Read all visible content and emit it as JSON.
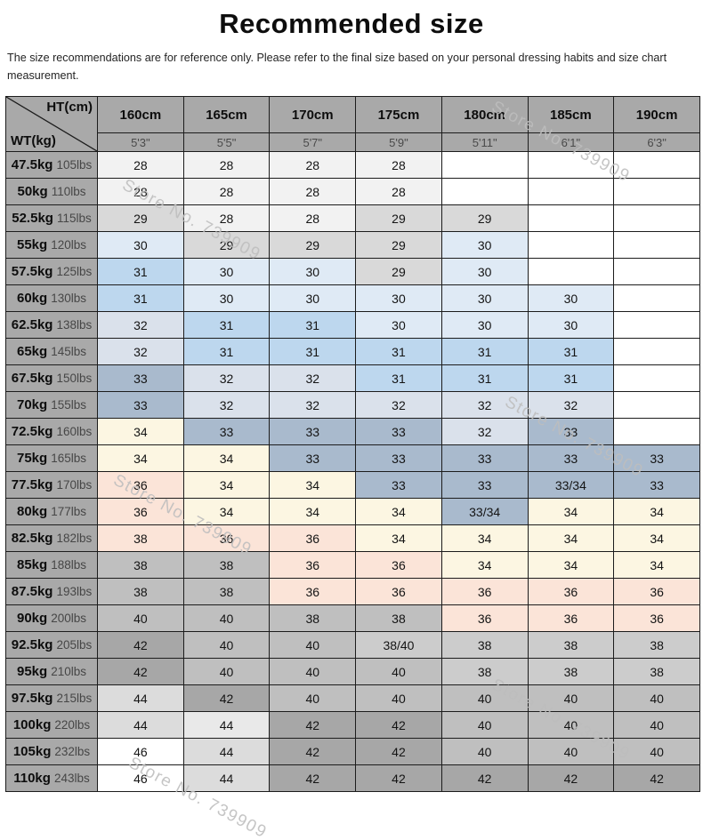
{
  "title": "Recommended size",
  "subtitle": "The size recommendations are for reference only. Please refer to the final size based on your personal dressing habits and size chart measurement.",
  "watermark_text": "Store No. 739909",
  "colors": {
    "header_bg": "#a9a9a9",
    "border": "#1c1c1c",
    "palette": {
      "w": "#ffffff",
      "p28": "#f2f2f2",
      "p29": "#d9d9d9",
      "p30": "#dfeaf5",
      "p31": "#bdd7ee",
      "p32": "#dae1eb",
      "p33": "#a9bacd",
      "p34": "#fcf6e2",
      "p36": "#fbe4d8",
      "p38": "#bfbfbf",
      "p38l": "#cccccc",
      "p42": "#a7a7a7",
      "p44": "#dcdcdc",
      "p44l": "#e9e9e9"
    }
  },
  "table": {
    "corner": {
      "top": "HT(cm)",
      "bottom": "WT(kg)"
    },
    "height_cm": [
      "160cm",
      "165cm",
      "170cm",
      "175cm",
      "180cm",
      "185cm",
      "190cm"
    ],
    "height_ft": [
      "5'3\"",
      "5'5\"",
      "5'7\"",
      "5'9\"",
      "5'11\"",
      "6'1\"",
      "6'3\""
    ],
    "rows": [
      {
        "kg": "47.5kg",
        "lbs": "105lbs",
        "cells": [
          [
            "28",
            "p28"
          ],
          [
            "28",
            "p28"
          ],
          [
            "28",
            "p28"
          ],
          [
            "28",
            "p28"
          ],
          [
            "",
            "w"
          ],
          [
            "",
            "w"
          ],
          [
            "",
            "w"
          ]
        ]
      },
      {
        "kg": "50kg",
        "lbs": "110lbs",
        "cells": [
          [
            "28",
            "p28"
          ],
          [
            "28",
            "p28"
          ],
          [
            "28",
            "p28"
          ],
          [
            "28",
            "p28"
          ],
          [
            "",
            "w"
          ],
          [
            "",
            "w"
          ],
          [
            "",
            "w"
          ]
        ]
      },
      {
        "kg": "52.5kg",
        "lbs": "115lbs",
        "cells": [
          [
            "29",
            "p29"
          ],
          [
            "28",
            "p28"
          ],
          [
            "28",
            "p28"
          ],
          [
            "29",
            "p29"
          ],
          [
            "29",
            "p29"
          ],
          [
            "",
            "w"
          ],
          [
            "",
            "w"
          ]
        ]
      },
      {
        "kg": "55kg",
        "lbs": "120lbs",
        "cells": [
          [
            "30",
            "p30"
          ],
          [
            "29",
            "p29"
          ],
          [
            "29",
            "p29"
          ],
          [
            "29",
            "p29"
          ],
          [
            "30",
            "p30"
          ],
          [
            "",
            "w"
          ],
          [
            "",
            "w"
          ]
        ]
      },
      {
        "kg": "57.5kg",
        "lbs": "125lbs",
        "cells": [
          [
            "31",
            "p31"
          ],
          [
            "30",
            "p30"
          ],
          [
            "30",
            "p30"
          ],
          [
            "29",
            "p29"
          ],
          [
            "30",
            "p30"
          ],
          [
            "",
            "w"
          ],
          [
            "",
            "w"
          ]
        ]
      },
      {
        "kg": "60kg",
        "lbs": "130lbs",
        "cells": [
          [
            "31",
            "p31"
          ],
          [
            "30",
            "p30"
          ],
          [
            "30",
            "p30"
          ],
          [
            "30",
            "p30"
          ],
          [
            "30",
            "p30"
          ],
          [
            "30",
            "p30"
          ],
          [
            "",
            "w"
          ]
        ]
      },
      {
        "kg": "62.5kg",
        "lbs": "138lbs",
        "cells": [
          [
            "32",
            "p32"
          ],
          [
            "31",
            "p31"
          ],
          [
            "31",
            "p31"
          ],
          [
            "30",
            "p30"
          ],
          [
            "30",
            "p30"
          ],
          [
            "30",
            "p30"
          ],
          [
            "",
            "w"
          ]
        ]
      },
      {
        "kg": "65kg",
        "lbs": "145lbs",
        "cells": [
          [
            "32",
            "p32"
          ],
          [
            "31",
            "p31"
          ],
          [
            "31",
            "p31"
          ],
          [
            "31",
            "p31"
          ],
          [
            "31",
            "p31"
          ],
          [
            "31",
            "p31"
          ],
          [
            "",
            "w"
          ]
        ]
      },
      {
        "kg": "67.5kg",
        "lbs": "150lbs",
        "cells": [
          [
            "33",
            "p33"
          ],
          [
            "32",
            "p32"
          ],
          [
            "32",
            "p32"
          ],
          [
            "31",
            "p31"
          ],
          [
            "31",
            "p31"
          ],
          [
            "31",
            "p31"
          ],
          [
            "",
            "w"
          ]
        ]
      },
      {
        "kg": "70kg",
        "lbs": "155lbs",
        "cells": [
          [
            "33",
            "p33"
          ],
          [
            "32",
            "p32"
          ],
          [
            "32",
            "p32"
          ],
          [
            "32",
            "p32"
          ],
          [
            "32",
            "p32"
          ],
          [
            "32",
            "p32"
          ],
          [
            "",
            "w"
          ]
        ]
      },
      {
        "kg": "72.5kg",
        "lbs": "160lbs",
        "cells": [
          [
            "34",
            "p34"
          ],
          [
            "33",
            "p33"
          ],
          [
            "33",
            "p33"
          ],
          [
            "33",
            "p33"
          ],
          [
            "32",
            "p32"
          ],
          [
            "33",
            "p33"
          ],
          [
            "",
            "w"
          ]
        ]
      },
      {
        "kg": "75kg",
        "lbs": "165lbs",
        "cells": [
          [
            "34",
            "p34"
          ],
          [
            "34",
            "p34"
          ],
          [
            "33",
            "p33"
          ],
          [
            "33",
            "p33"
          ],
          [
            "33",
            "p33"
          ],
          [
            "33",
            "p33"
          ],
          [
            "33",
            "p33"
          ]
        ]
      },
      {
        "kg": "77.5kg",
        "lbs": "170lbs",
        "cells": [
          [
            "36",
            "p36"
          ],
          [
            "34",
            "p34"
          ],
          [
            "34",
            "p34"
          ],
          [
            "33",
            "p33"
          ],
          [
            "33",
            "p33"
          ],
          [
            "33/34",
            "p33"
          ],
          [
            "33",
            "p33"
          ]
        ]
      },
      {
        "kg": "80kg",
        "lbs": "177lbs",
        "cells": [
          [
            "36",
            "p36"
          ],
          [
            "34",
            "p34"
          ],
          [
            "34",
            "p34"
          ],
          [
            "34",
            "p34"
          ],
          [
            "33/34",
            "p33"
          ],
          [
            "34",
            "p34"
          ],
          [
            "34",
            "p34"
          ]
        ]
      },
      {
        "kg": "82.5kg",
        "lbs": "182lbs",
        "cells": [
          [
            "38",
            "p36"
          ],
          [
            "36",
            "p36"
          ],
          [
            "36",
            "p36"
          ],
          [
            "34",
            "p34"
          ],
          [
            "34",
            "p34"
          ],
          [
            "34",
            "p34"
          ],
          [
            "34",
            "p34"
          ]
        ]
      },
      {
        "kg": "85kg",
        "lbs": "188lbs",
        "cells": [
          [
            "38",
            "p38"
          ],
          [
            "38",
            "p38"
          ],
          [
            "36",
            "p36"
          ],
          [
            "36",
            "p36"
          ],
          [
            "34",
            "p34"
          ],
          [
            "34",
            "p34"
          ],
          [
            "34",
            "p34"
          ]
        ]
      },
      {
        "kg": "87.5kg",
        "lbs": "193lbs",
        "cells": [
          [
            "38",
            "p38"
          ],
          [
            "38",
            "p38"
          ],
          [
            "36",
            "p36"
          ],
          [
            "36",
            "p36"
          ],
          [
            "36",
            "p36"
          ],
          [
            "36",
            "p36"
          ],
          [
            "36",
            "p36"
          ]
        ]
      },
      {
        "kg": "90kg",
        "lbs": "200lbs",
        "cells": [
          [
            "40",
            "p38"
          ],
          [
            "40",
            "p38"
          ],
          [
            "38",
            "p38"
          ],
          [
            "38",
            "p38"
          ],
          [
            "36",
            "p36"
          ],
          [
            "36",
            "p36"
          ],
          [
            "36",
            "p36"
          ]
        ]
      },
      {
        "kg": "92.5kg",
        "lbs": "205lbs",
        "cells": [
          [
            "42",
            "p42"
          ],
          [
            "40",
            "p38"
          ],
          [
            "40",
            "p38"
          ],
          [
            "38/40",
            "p38l"
          ],
          [
            "38",
            "p38l"
          ],
          [
            "38",
            "p38l"
          ],
          [
            "38",
            "p38l"
          ]
        ]
      },
      {
        "kg": "95kg",
        "lbs": "210lbs",
        "cells": [
          [
            "42",
            "p42"
          ],
          [
            "40",
            "p38"
          ],
          [
            "40",
            "p38"
          ],
          [
            "40",
            "p38"
          ],
          [
            "38",
            "p38l"
          ],
          [
            "38",
            "p38l"
          ],
          [
            "38",
            "p38l"
          ]
        ]
      },
      {
        "kg": "97.5kg",
        "lbs": "215lbs",
        "cells": [
          [
            "44",
            "p44"
          ],
          [
            "42",
            "p42"
          ],
          [
            "40",
            "p38"
          ],
          [
            "40",
            "p38"
          ],
          [
            "40",
            "p38"
          ],
          [
            "40",
            "p38"
          ],
          [
            "40",
            "p38"
          ]
        ]
      },
      {
        "kg": "100kg",
        "lbs": "220lbs",
        "cells": [
          [
            "44",
            "p44"
          ],
          [
            "44",
            "p44l"
          ],
          [
            "42",
            "p42"
          ],
          [
            "42",
            "p42"
          ],
          [
            "40",
            "p38"
          ],
          [
            "40",
            "p38"
          ],
          [
            "40",
            "p38"
          ]
        ]
      },
      {
        "kg": "105kg",
        "lbs": "232lbs",
        "cells": [
          [
            "46",
            "w"
          ],
          [
            "44",
            "p44"
          ],
          [
            "42",
            "p42"
          ],
          [
            "42",
            "p42"
          ],
          [
            "40",
            "p38"
          ],
          [
            "40",
            "p38"
          ],
          [
            "40",
            "p38"
          ]
        ]
      },
      {
        "kg": "110kg",
        "lbs": "243lbs",
        "cells": [
          [
            "46",
            "w"
          ],
          [
            "44",
            "p44"
          ],
          [
            "42",
            "p42"
          ],
          [
            "42",
            "p42"
          ],
          [
            "42",
            "p42"
          ],
          [
            "42",
            "p42"
          ],
          [
            "42",
            "p42"
          ]
        ]
      }
    ]
  }
}
